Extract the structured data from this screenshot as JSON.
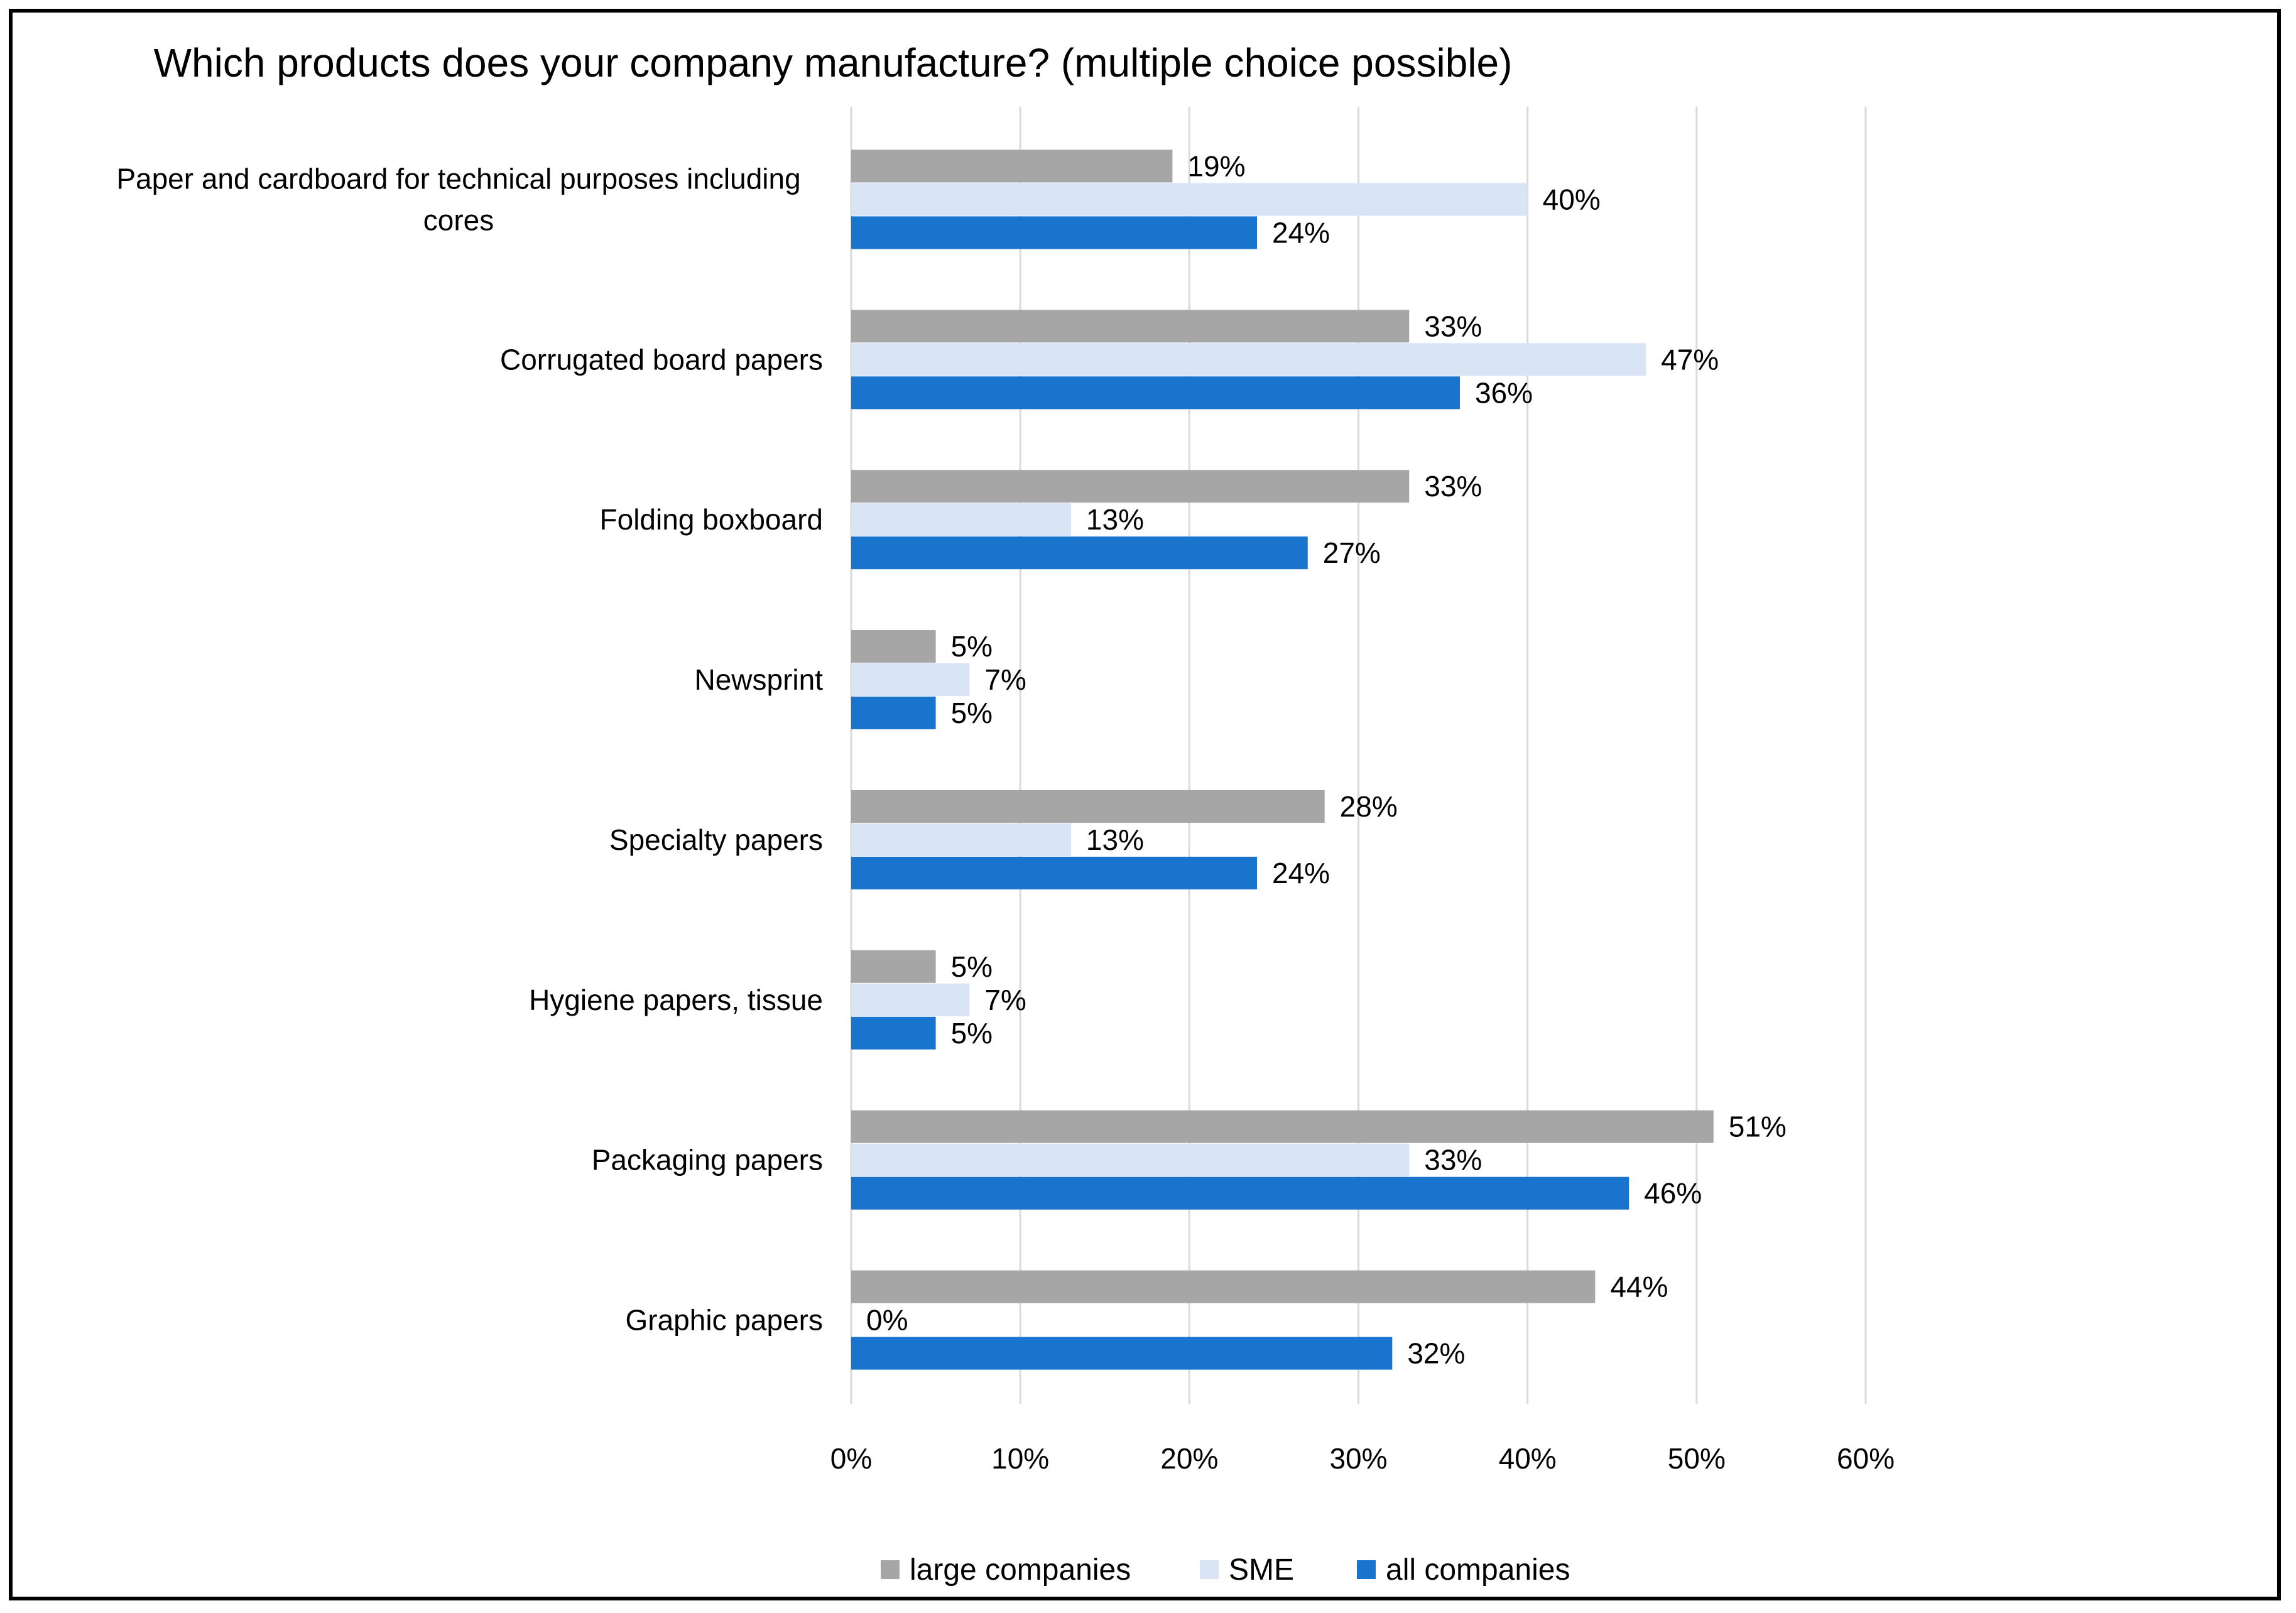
{
  "chart_data": {
    "type": "bar",
    "orientation": "horizontal",
    "title": "Which products does your company manufacture? (multiple choice possible)",
    "xlabel": "",
    "ylabel": "",
    "xlim": [
      0,
      60
    ],
    "x_ticks": [
      "0%",
      "10%",
      "20%",
      "30%",
      "40%",
      "50%",
      "60%"
    ],
    "grid": "vertical",
    "legend_position": "bottom",
    "categories": [
      [
        "Paper and cardboard for technical purposes including",
        "cores"
      ],
      [
        "Corrugated board papers"
      ],
      [
        "Folding boxboard"
      ],
      [
        "Newsprint"
      ],
      [
        "Specialty papers"
      ],
      [
        "Hygiene papers, tissue"
      ],
      [
        "Packaging papers"
      ],
      [
        "Graphic papers"
      ]
    ],
    "series": [
      {
        "name": "large companies",
        "color": "#a6a6a6",
        "values": [
          19,
          33,
          33,
          5,
          28,
          5,
          51,
          44
        ],
        "labels": [
          "19%",
          "33%",
          "33%",
          "5%",
          "28%",
          "5%",
          "51%",
          "44%"
        ]
      },
      {
        "name": "SME",
        "color": "#d9e5f5",
        "values": [
          40,
          47,
          13,
          7,
          13,
          7,
          33,
          0
        ],
        "labels": [
          "40%",
          "47%",
          "13%",
          "7%",
          "13%",
          "7%",
          "33%",
          "0%"
        ]
      },
      {
        "name": "all companies",
        "color": "#1874cd",
        "values": [
          24,
          36,
          27,
          5,
          24,
          5,
          46,
          32
        ],
        "labels": [
          "24%",
          "36%",
          "27%",
          "5%",
          "24%",
          "5%",
          "46%",
          "32%"
        ]
      }
    ]
  }
}
